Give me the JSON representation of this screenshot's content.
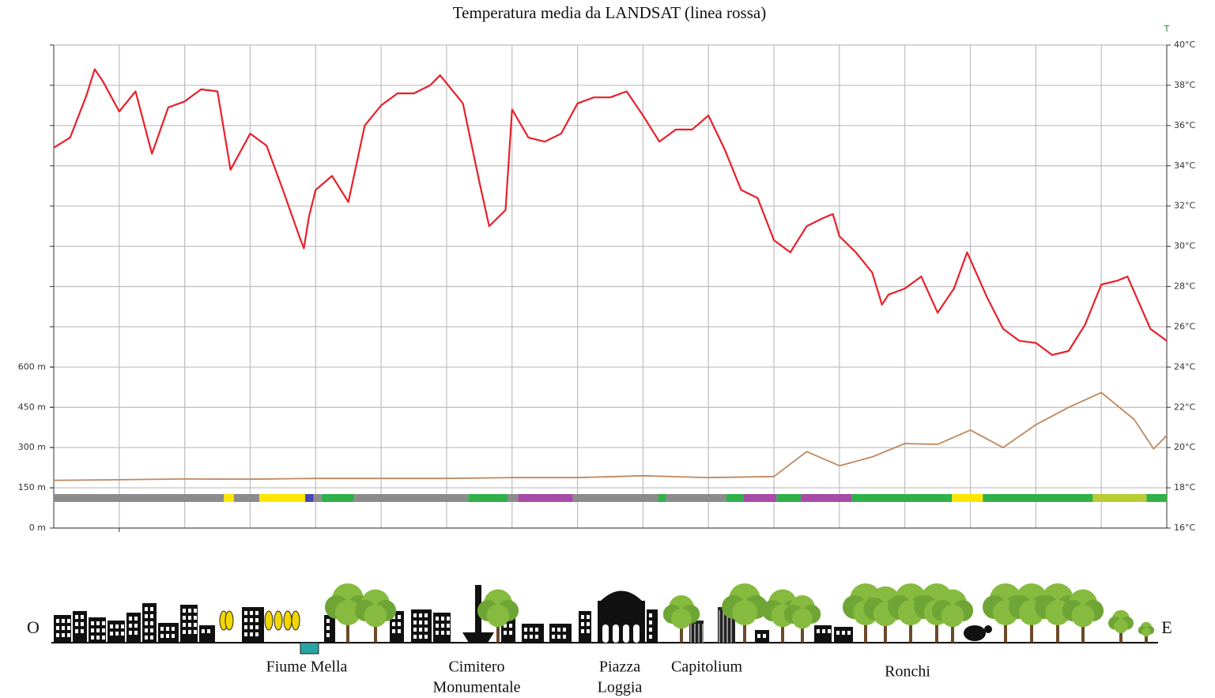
{
  "chart_data": {
    "type": "line",
    "title": "Temperatura media da LANDSAT (linea rossa)",
    "y2_label": "T",
    "xlim": [
      0,
      17
    ],
    "ylim": [
      0,
      1800
    ],
    "yticks": [
      {
        "value": 0,
        "label": "0 m"
      },
      {
        "value": 150,
        "label": "150 m"
      },
      {
        "value": 300,
        "label": "300 m"
      },
      {
        "value": 450,
        "label": "450 m"
      },
      {
        "value": 600,
        "label": "600 m"
      }
    ],
    "y2lim": [
      16,
      40
    ],
    "y2ticks": [
      {
        "value": 16,
        "label": "16°C"
      },
      {
        "value": 18,
        "label": "18°C"
      },
      {
        "value": 20,
        "label": "20°C"
      },
      {
        "value": 22,
        "label": "22°C"
      },
      {
        "value": 24,
        "label": "24°C"
      },
      {
        "value": 26,
        "label": "26°C"
      },
      {
        "value": 28,
        "label": "28°C"
      },
      {
        "value": 30,
        "label": "30°C"
      },
      {
        "value": 32,
        "label": "32°C"
      },
      {
        "value": 34,
        "label": "34°C"
      },
      {
        "value": 36,
        "label": "36°C"
      },
      {
        "value": 38,
        "label": "38°C"
      },
      {
        "value": 40,
        "label": "40°C"
      }
    ],
    "grid": true,
    "series": [
      {
        "color": "#e8202a",
        "axis": "y2",
        "x": [
          0,
          0.25,
          0.5,
          0.625,
          0.75,
          1.0,
          1.25,
          1.5,
          1.75,
          2.0,
          2.25,
          2.5,
          2.7,
          3.0,
          3.25,
          3.5,
          3.75,
          3.82,
          3.9,
          4.0,
          4.25,
          4.5,
          4.75,
          5.0,
          5.25,
          5.5,
          5.75,
          5.9,
          6.25,
          6.5,
          6.65,
          6.9,
          7.0,
          7.25,
          7.5,
          7.75,
          8.0,
          8.25,
          8.5,
          8.75,
          9.0,
          9.25,
          9.5,
          9.75,
          10.0,
          10.25,
          10.5,
          10.75,
          11.0,
          11.25,
          11.5,
          11.75,
          11.9,
          12.0,
          12.25,
          12.5,
          12.65,
          12.75,
          13.0,
          13.25,
          13.5,
          13.75,
          13.95,
          14.25,
          14.5,
          14.75,
          15.0,
          15.25,
          15.5,
          15.75,
          16.0,
          16.25,
          16.4,
          16.75,
          17.0
        ],
        "values": [
          34.9,
          35.4,
          37.5,
          38.8,
          38.2,
          36.7,
          37.7,
          34.6,
          36.9,
          37.2,
          37.8,
          37.7,
          33.8,
          35.6,
          35.0,
          32.8,
          30.5,
          29.9,
          31.5,
          32.8,
          33.5,
          32.2,
          36.0,
          37.0,
          37.6,
          37.6,
          38.0,
          38.5,
          37.1,
          33.2,
          31.0,
          31.8,
          36.8,
          35.4,
          35.2,
          35.6,
          37.1,
          37.4,
          37.4,
          37.7,
          36.5,
          35.2,
          35.8,
          35.8,
          36.5,
          34.8,
          32.8,
          32.4,
          30.3,
          29.7,
          31.0,
          31.4,
          31.6,
          30.5,
          29.7,
          28.7,
          27.1,
          27.6,
          27.9,
          28.5,
          26.7,
          27.9,
          29.7,
          27.5,
          25.9,
          25.3,
          25.2,
          24.6,
          24.8,
          26.1,
          28.1,
          28.3,
          28.5,
          25.9,
          25.3
        ]
      },
      {
        "color": "#c0875f",
        "axis": "y",
        "x": [
          0,
          1,
          2,
          3,
          4,
          5,
          6,
          7,
          8,
          9,
          10,
          11,
          11.5,
          12,
          12.5,
          13,
          13.5,
          14,
          14.5,
          15,
          15.5,
          16,
          16.5,
          16.8,
          17
        ],
        "values": [
          178,
          180,
          183,
          182,
          185,
          185,
          185,
          188,
          188,
          195,
          188,
          192,
          285,
          232,
          265,
          315,
          312,
          365,
          300,
          385,
          450,
          505,
          405,
          295,
          345
        ]
      }
    ],
    "land_use": {
      "edges": [
        0,
        2.6,
        2.75,
        3.14,
        3.84,
        3.97,
        4.09,
        4.59,
        6.33,
        6.93,
        7.09,
        7.93,
        9.23,
        9.35,
        10.27,
        10.53,
        11.04,
        11.41,
        12.19,
        13.72,
        14.19,
        15.87,
        16.69,
        17
      ],
      "colors": [
        "#8c8c8c",
        "#ffe600",
        "#8c8c8c",
        "#ffe600",
        "#4848b8",
        "#8c8c8c",
        "#2fb14a",
        "#8c8c8c",
        "#2fb14a",
        "#8c8c8c",
        "#a84aa8",
        "#8c8c8c",
        "#2fb14a",
        "#8c8c8c",
        "#2fb14a",
        "#a84aa8",
        "#2fb14a",
        "#a84aa8",
        "#2fb14a",
        "#ffe600",
        "#2fb14a",
        "#b8cc33",
        "#2fb14a"
      ]
    }
  },
  "landscape": {
    "west": "O",
    "east": "E",
    "places": [
      [
        "Fiume Mella"
      ],
      [
        "Cimitero",
        "Monumentale"
      ],
      [
        "Piazza",
        "Loggia"
      ],
      [
        "Capitolium"
      ],
      [
        "Ronchi"
      ]
    ]
  }
}
